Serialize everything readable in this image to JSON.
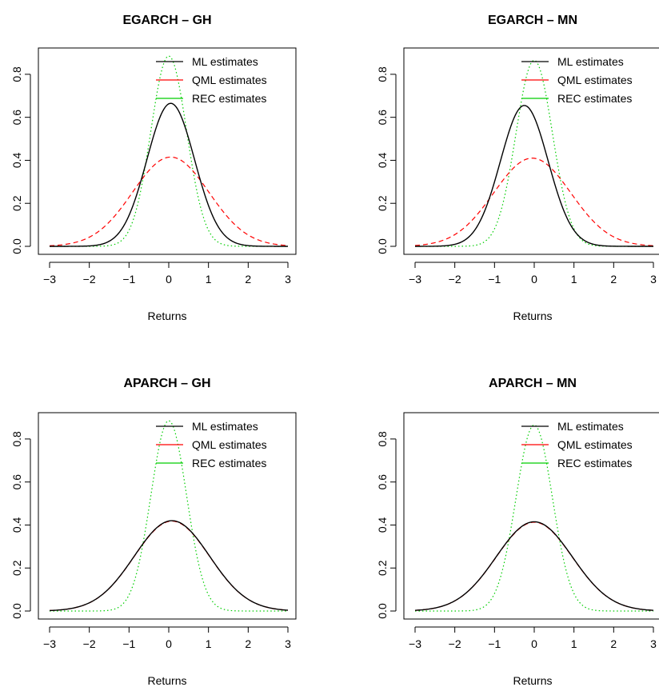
{
  "chart_data": [
    {
      "type": "line",
      "title": "EGARCH – GH",
      "xlabel": "Returns",
      "ylabel": "",
      "xlim": [
        -3,
        3
      ],
      "ylim": [
        0,
        0.9
      ],
      "xticks": [
        "−3",
        "−2",
        "−1",
        "0",
        "1",
        "2",
        "3"
      ],
      "yticks": [
        "0.0",
        "0.2",
        "0.4",
        "0.6",
        "0.8"
      ],
      "legend_position": "top-right",
      "series": [
        {
          "name": "ML estimates",
          "color": "#000000",
          "style": "solid",
          "mean": 0.05,
          "sd": 0.6,
          "peak": 0.665
        },
        {
          "name": "QML estimates",
          "color": "#ff0000",
          "style": "dashed",
          "mean": 0.05,
          "sd": 0.96,
          "peak": 0.415
        },
        {
          "name": "REC estimates",
          "color": "#00cd00",
          "style": "dotted",
          "mean": 0.0,
          "sd": 0.45,
          "peak": 0.885
        }
      ]
    },
    {
      "type": "line",
      "title": "EGARCH – MN",
      "xlabel": "Returns",
      "ylabel": "",
      "xlim": [
        -3,
        3
      ],
      "ylim": [
        0,
        0.9
      ],
      "xticks": [
        "−3",
        "−2",
        "−1",
        "0",
        "1",
        "2",
        "3"
      ],
      "yticks": [
        "0.0",
        "0.2",
        "0.4",
        "0.6",
        "0.8"
      ],
      "legend_position": "top-right",
      "series": [
        {
          "name": "ML estimates",
          "color": "#000000",
          "style": "solid",
          "mean": -0.25,
          "sd": 0.6,
          "peak": 0.655
        },
        {
          "name": "QML estimates",
          "color": "#ff0000",
          "style": "dashed",
          "mean": -0.05,
          "sd": 0.97,
          "peak": 0.41
        },
        {
          "name": "REC estimates",
          "color": "#00cd00",
          "style": "dotted",
          "mean": 0.0,
          "sd": 0.46,
          "peak": 0.865
        }
      ]
    },
    {
      "type": "line",
      "title": "APARCH – GH",
      "xlabel": "Returns",
      "ylabel": "",
      "xlim": [
        -3,
        3
      ],
      "ylim": [
        0,
        0.9
      ],
      "xticks": [
        "−3",
        "−2",
        "−1",
        "0",
        "1",
        "2",
        "3"
      ],
      "yticks": [
        "0.0",
        "0.2",
        "0.4",
        "0.6",
        "0.8"
      ],
      "legend_position": "top-right",
      "series": [
        {
          "name": "ML estimates",
          "color": "#000000",
          "style": "solid",
          "mean": 0.08,
          "sd": 0.95,
          "peak": 0.42
        },
        {
          "name": "QML estimates",
          "color": "#ff0000",
          "style": "dashed",
          "mean": 0.08,
          "sd": 0.95,
          "peak": 0.418
        },
        {
          "name": "REC estimates",
          "color": "#00cd00",
          "style": "dotted",
          "mean": 0.0,
          "sd": 0.45,
          "peak": 0.885
        }
      ]
    },
    {
      "type": "line",
      "title": "APARCH – MN",
      "xlabel": "Returns",
      "ylabel": "",
      "xlim": [
        -3,
        3
      ],
      "ylim": [
        0,
        0.9
      ],
      "xticks": [
        "−3",
        "−2",
        "−1",
        "0",
        "1",
        "2",
        "3"
      ],
      "yticks": [
        "0.0",
        "0.2",
        "0.4",
        "0.6",
        "0.8"
      ],
      "legend_position": "top-right",
      "series": [
        {
          "name": "ML estimates",
          "color": "#000000",
          "style": "solid",
          "mean": 0.0,
          "sd": 0.96,
          "peak": 0.415
        },
        {
          "name": "QML estimates",
          "color": "#ff0000",
          "style": "dashed",
          "mean": 0.0,
          "sd": 0.96,
          "peak": 0.413
        },
        {
          "name": "REC estimates",
          "color": "#00cd00",
          "style": "dotted",
          "mean": 0.0,
          "sd": 0.46,
          "peak": 0.865
        }
      ]
    }
  ]
}
